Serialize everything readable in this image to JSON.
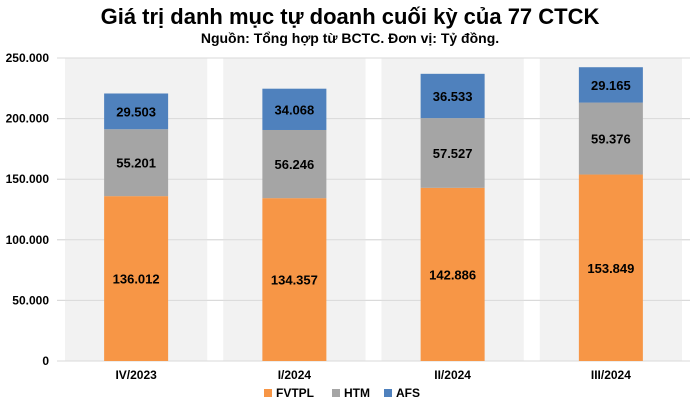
{
  "chart_data": {
    "type": "bar",
    "stacked": true,
    "title": "Giá trị danh mục tự doanh cuối kỳ của 77 CTCK",
    "subtitle": "Nguồn: Tổng hợp từ BCTC. Đơn vị: Tỷ đồng.",
    "categories": [
      "IV/2023",
      "I/2024",
      "II/2024",
      "III/2024"
    ],
    "series": [
      {
        "name": "FVTPL",
        "color": "#F79646",
        "values": [
          136.012,
          134.357,
          142.886,
          153.849
        ],
        "labels": [
          "136.012",
          "134.357",
          "142.886",
          "153.849"
        ]
      },
      {
        "name": "HTM",
        "color": "#A5A5A5",
        "values": [
          55.201,
          56.246,
          57.527,
          59.376
        ],
        "labels": [
          "55.201",
          "56.246",
          "57.527",
          "59.376"
        ]
      },
      {
        "name": "AFS",
        "color": "#4F81BD",
        "values": [
          29.503,
          34.068,
          36.533,
          29.165
        ],
        "labels": [
          "29.503",
          "34.068",
          "36.533",
          "29.165"
        ]
      }
    ],
    "yticks": [
      "0",
      "50.000",
      "100.000",
      "150.000",
      "200.000",
      "250.000"
    ],
    "ylim": [
      0,
      250
    ],
    "grid": true,
    "legend_position": "bottom"
  }
}
